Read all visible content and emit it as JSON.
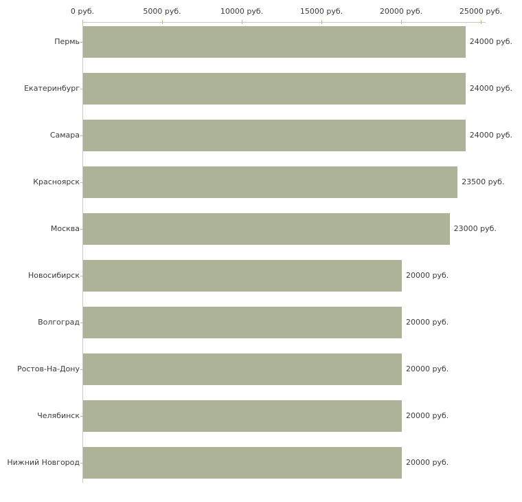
{
  "chart_data": {
    "type": "bar",
    "orientation": "horizontal",
    "title": "",
    "xlabel": "",
    "ylabel": "",
    "unit": "руб.",
    "categories": [
      "Пермь",
      "Екатеринбург",
      "Самара",
      "Красноярск",
      "Москва",
      "Новосибирск",
      "Волгоград",
      "Ростов-На-Дону",
      "Челябинск",
      "Нижний Новгород"
    ],
    "values": [
      24000,
      24000,
      24000,
      23500,
      23000,
      20000,
      20000,
      20000,
      20000,
      20000
    ],
    "value_labels": [
      "24000 руб.",
      "24000 руб.",
      "24000 руб.",
      "23500 руб.",
      "23000 руб.",
      "20000 руб.",
      "20000 руб.",
      "20000 руб.",
      "20000 руб.",
      "20000 руб."
    ],
    "x_ticks": [
      0,
      5000,
      10000,
      15000,
      20000,
      25000
    ],
    "x_tick_labels": [
      "0 руб.",
      "5000 руб.",
      "10000 руб.",
      "15000 руб.",
      "20000 руб.",
      "25000 руб."
    ],
    "xlim": [
      0,
      25000
    ],
    "legend": "none",
    "grid": "off",
    "colors": {
      "bar_fill": "#adb399",
      "axis_line": "#c6c6c6",
      "tick_mark": "#b9ba8e",
      "text": "#3a3a3a",
      "background": "#ffffff"
    }
  }
}
